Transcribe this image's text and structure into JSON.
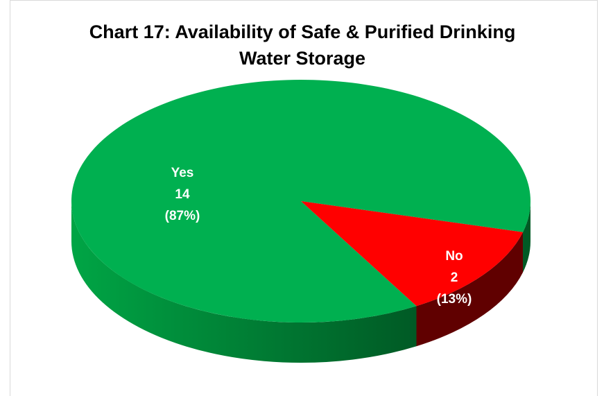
{
  "chart_data": {
    "type": "pie",
    "title": [
      "Chart 17: Availability of Safe & Purified Drinking",
      "Water Storage"
    ],
    "categories": [
      "Yes",
      "No"
    ],
    "values": [
      14,
      2
    ],
    "percent_labels": [
      "(87%)",
      "(13%)"
    ],
    "colors": [
      "#00b050",
      "#ff0000"
    ],
    "side_colors": [
      [
        "#00a545",
        "#005a25"
      ],
      [
        "#8a0000",
        "#600000"
      ]
    ]
  }
}
